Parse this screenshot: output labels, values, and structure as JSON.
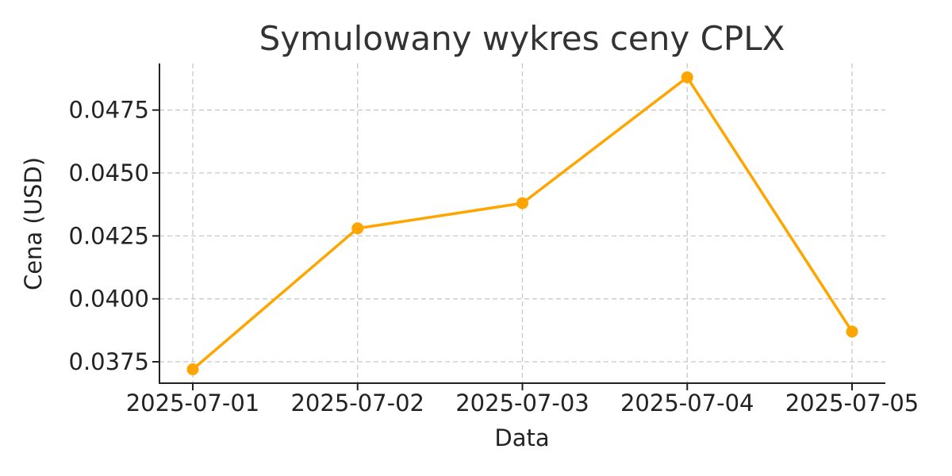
{
  "chart_data": {
    "type": "line",
    "title": "Symulowany wykres ceny CPLX",
    "xlabel": "Data",
    "ylabel": "Cena (USD)",
    "x": [
      "2025-07-01",
      "2025-07-02",
      "2025-07-03",
      "2025-07-04",
      "2025-07-05"
    ],
    "y_ticks": [
      "0.0375",
      "0.0400",
      "0.0425",
      "0.0450",
      "0.0475"
    ],
    "ylim": [
      0.03665,
      0.04935
    ],
    "grid": true,
    "series": [
      {
        "values": [
          0.0372,
          0.0428,
          0.0438,
          0.0488,
          0.0387
        ],
        "color": "#FFA500",
        "marker": "circle"
      }
    ]
  }
}
